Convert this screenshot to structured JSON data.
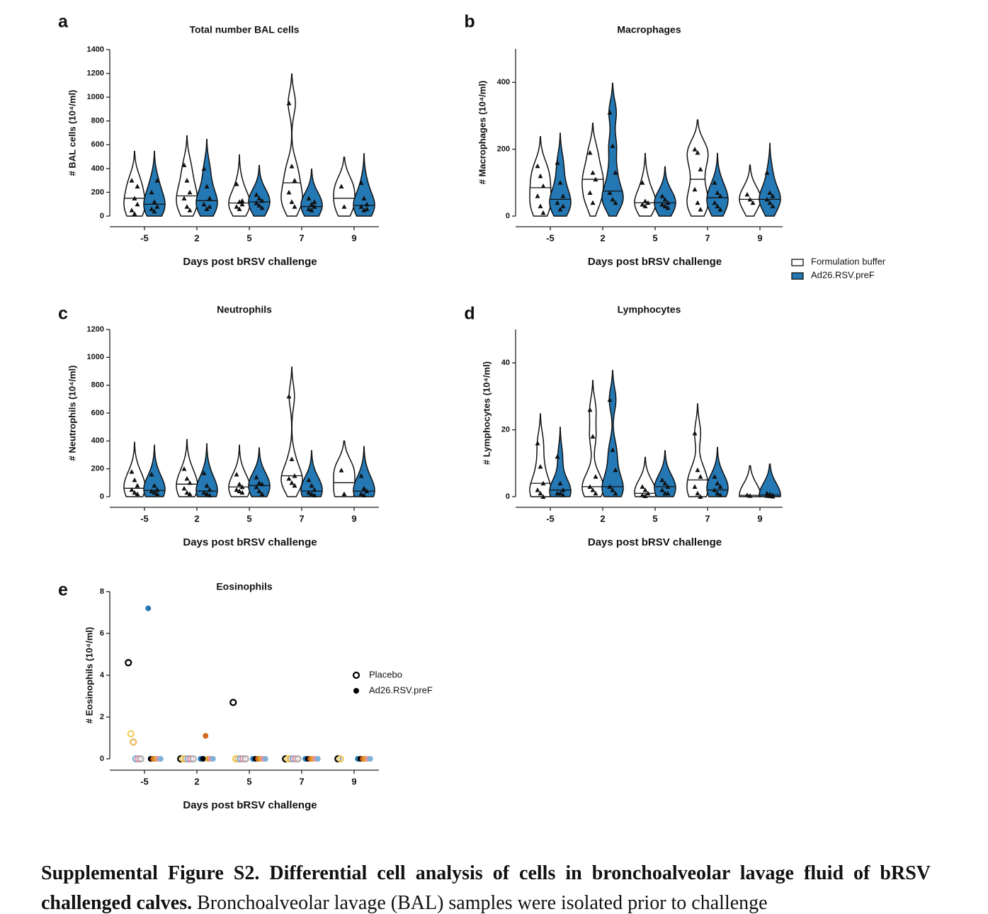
{
  "chart_data": [
    {
      "type": "violin",
      "panel": "a",
      "title": "Total number BAL cells",
      "ylabel": "# BAL cells (10⁴/ml)",
      "xlabel": "Days post bRSV challenge",
      "categories": [
        "-5",
        "2",
        "5",
        "7",
        "9"
      ],
      "ylim": [
        0,
        1400
      ],
      "yticks": [
        0,
        200,
        400,
        600,
        800,
        1000,
        1200,
        1400
      ],
      "series": [
        {
          "color": "#ffffff",
          "values": [
            [
              300,
              150,
              100,
              50,
              20,
              250
            ],
            [
              430,
              300,
              200,
              150,
              80,
              50
            ],
            [
              270,
              120,
              100,
              80,
              60,
              130
            ],
            [
              950,
              420,
              300,
              200,
              120,
              80
            ],
            [
              250,
              80
            ]
          ],
          "medians": [
            150,
            170,
            110,
            280,
            150
          ]
        },
        {
          "color": "#2478b4",
          "values": [
            [
              200,
              120,
              80,
              60,
              40,
              300
            ],
            [
              400,
              250,
              150,
              100,
              60,
              80
            ],
            [
              180,
              150,
              130,
              110,
              90,
              70
            ],
            [
              150,
              100,
              80,
              60,
              50,
              120
            ],
            [
              280,
              150,
              100,
              80,
              50,
              60
            ]
          ],
          "medians": [
            100,
            130,
            120,
            80,
            90
          ]
        }
      ]
    },
    {
      "type": "violin",
      "panel": "b",
      "title": "Macrophages",
      "ylabel": "# Macrophages (10⁴/ml)",
      "xlabel": "Days post bRSV challenge",
      "categories": [
        "-5",
        "2",
        "5",
        "7",
        "9"
      ],
      "ylim": [
        0,
        500
      ],
      "yticks": [
        0,
        200,
        400
      ],
      "legend": "right",
      "series": [
        {
          "name": "Formulation buffer",
          "color": "#ffffff",
          "values": [
            [
              150,
              120,
              90,
              60,
              30,
              10
            ],
            [
              190,
              130,
              110,
              70,
              40
            ],
            [
              100,
              45,
              40,
              35,
              30
            ],
            [
              200,
              190,
              140,
              80,
              40,
              20
            ],
            [
              65,
              50,
              40
            ]
          ],
          "medians": [
            85,
            110,
            40,
            110,
            50
          ]
        },
        {
          "name": "Ad26.RSV.preF",
          "color": "#2478b4",
          "values": [
            [
              160,
              100,
              60,
              40,
              20,
              30
            ],
            [
              310,
              210,
              130,
              70,
              50,
              40
            ],
            [
              60,
              50,
              40,
              35,
              30,
              25
            ],
            [
              100,
              70,
              60,
              40,
              30,
              20
            ],
            [
              130,
              70,
              60,
              50,
              40,
              30
            ]
          ],
          "medians": [
            50,
            75,
            40,
            55,
            50
          ]
        }
      ]
    },
    {
      "type": "violin",
      "panel": "c",
      "title": "Neutrophils",
      "ylabel": "# Neutrophils (10⁴/ml)",
      "xlabel": "Days post bRSV challenge",
      "categories": [
        "-5",
        "2",
        "5",
        "7",
        "9"
      ],
      "ylim": [
        0,
        1200
      ],
      "yticks": [
        0,
        200,
        400,
        600,
        800,
        1000,
        1200
      ],
      "series": [
        {
          "color": "#ffffff",
          "values": [
            [
              180,
              120,
              80,
              50,
              30,
              20
            ],
            [
              200,
              130,
              100,
              60,
              30,
              20
            ],
            [
              160,
              90,
              70,
              50,
              40,
              30
            ],
            [
              720,
              270,
              150,
              130,
              100,
              80
            ],
            [
              190,
              20
            ]
          ],
          "medians": [
            60,
            90,
            70,
            150,
            100
          ]
        },
        {
          "color": "#2478b4",
          "values": [
            [
              160,
              80,
              50,
              40,
              30,
              20
            ],
            [
              170,
              80,
              50,
              30,
              20,
              10
            ],
            [
              140,
              100,
              90,
              70,
              40,
              20
            ],
            [
              120,
              80,
              50,
              30,
              20,
              10
            ],
            [
              150,
              60,
              40,
              20,
              10
            ]
          ],
          "medians": [
            45,
            40,
            80,
            40,
            40
          ]
        }
      ]
    },
    {
      "type": "violin",
      "panel": "d",
      "title": "Lymphocytes",
      "ylabel": "# Lymphocytes (10⁴/ml)",
      "xlabel": "Days post bRSV challenge",
      "categories": [
        "-5",
        "2",
        "5",
        "7",
        "9"
      ],
      "ylim": [
        0,
        50
      ],
      "yticks": [
        0,
        20,
        40
      ],
      "series": [
        {
          "color": "#ffffff",
          "values": [
            [
              16,
              9,
              4,
              2,
              1,
              0
            ],
            [
              26,
              18,
              6,
              3,
              2,
              1
            ],
            [
              3,
              2,
              1,
              0.5,
              0.2
            ],
            [
              19,
              8,
              6,
              3,
              1,
              0
            ],
            [
              0.5,
              0.3
            ]
          ],
          "medians": [
            4,
            3,
            1,
            5,
            0.4
          ]
        },
        {
          "color": "#2478b4",
          "values": [
            [
              12,
              4,
              2,
              1,
              1,
              0.5
            ],
            [
              29,
              14,
              8,
              3,
              2,
              1
            ],
            [
              5,
              4,
              3,
              2,
              1,
              1
            ],
            [
              6,
              4,
              3,
              2,
              1,
              0.5
            ],
            [
              1,
              0.8,
              0.5,
              0.3,
              0.2,
              0.1
            ]
          ],
          "medians": [
            2,
            3,
            3,
            2,
            0.5
          ]
        }
      ]
    },
    {
      "type": "dot",
      "panel": "e",
      "title": "Eosinophils",
      "ylabel": "# Eosinophils (10⁴/ml)",
      "xlabel": "Days post bRSV challenge",
      "categories": [
        "-5",
        "2",
        "5",
        "7",
        "9"
      ],
      "ylim": [
        0,
        8
      ],
      "yticks": [
        0,
        2,
        4,
        6,
        8
      ],
      "legend": "right",
      "series": [
        {
          "name": "Placebo",
          "marker": "open",
          "colors": [
            "#000000",
            "#f0d060",
            "#e8b860",
            "#7fb0d8",
            "#e890a8",
            "#b0b0b0"
          ],
          "values": [
            [
              4.6,
              1.2,
              0.8,
              0,
              0,
              0
            ],
            [
              0,
              0,
              0,
              0,
              0,
              0
            ],
            [
              2.7,
              0,
              0,
              0,
              0,
              0
            ],
            [
              0,
              0,
              0,
              0,
              0,
              0
            ],
            [
              0,
              0
            ]
          ]
        },
        {
          "name": "Ad26.RSV.preF",
          "marker": "filled",
          "colors": [
            "#2478b4",
            "#000000",
            "#d2691e",
            "#e0a020",
            "#e890a8",
            "#7fb0d8"
          ],
          "values": [
            [
              7.2,
              0,
              0,
              0,
              0,
              0
            ],
            [
              0,
              0,
              1.1,
              0,
              0,
              0
            ],
            [
              0,
              0,
              0,
              0,
              0,
              0
            ],
            [
              0,
              0,
              0,
              0,
              0,
              0
            ],
            [
              0,
              0,
              0,
              0,
              0,
              0
            ]
          ]
        }
      ]
    }
  ],
  "caption": {
    "bold": "Supplemental Figure S2. Differential cell analysis of cells in bronchoalveolar lavage fluid of bRSV challenged calves.",
    "text": "Bronchoalveolar lavage (BAL) samples were isolated prior to challenge"
  }
}
